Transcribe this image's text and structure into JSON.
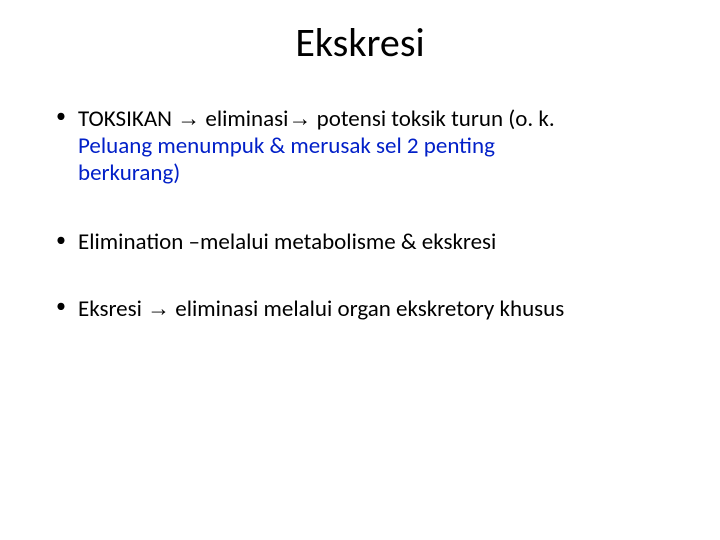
{
  "title": "Ekskresi",
  "bullets": {
    "b1_line1_a": "TOKSIKAN ",
    "b1_arrow1": "→",
    "b1_line1_b": " eliminasi",
    "b1_arrow2": "→",
    "b1_line1_c": " potensi toksik turun (o. k.",
    "b1_line2": "Peluang  menumpuk & merusak sel 2 penting",
    "b1_line3": "berkurang)",
    "b2": "Elimination –melalui metabolisme & ekskresi",
    "b3_a": " Eksresi ",
    "b3_arrow": "→",
    "b3_b": " eliminasi melalui organ ekskretory khusus"
  },
  "colors": {
    "text": "#000000",
    "accent": "#0220c8",
    "background": "#ffffff"
  },
  "font": {
    "title_size_pt": 40,
    "body_size_pt": 23
  }
}
